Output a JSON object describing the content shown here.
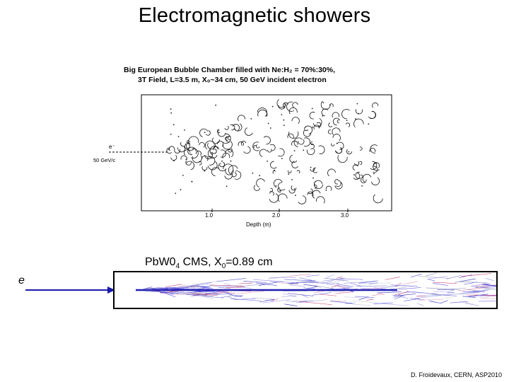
{
  "slide": {
    "title": "Electromagnetic showers",
    "bubble_figure": {
      "caption_line1": "Big European Bubble Chamber filled with Ne:H₂ = 70%:30%,",
      "caption_line2": "3T Field, L=3.5 m, X₀~34 cm, 50 GeV incident electron",
      "beam_label": "e⁻",
      "beam_energy": "50 GeV/c",
      "axis_ticks": [
        "1.0",
        "2.0",
        "3.0"
      ],
      "axis_label": "Depth (m)"
    },
    "cms_figure": {
      "label_prefix": "PbW0",
      "label_sub": "4",
      "label_mid": " CMS, X",
      "label_sub2": "0",
      "label_suffix": "=0.89 cm",
      "particle_label": "e"
    },
    "credit": "D. Froidevaux, CERN, ASP2010"
  }
}
